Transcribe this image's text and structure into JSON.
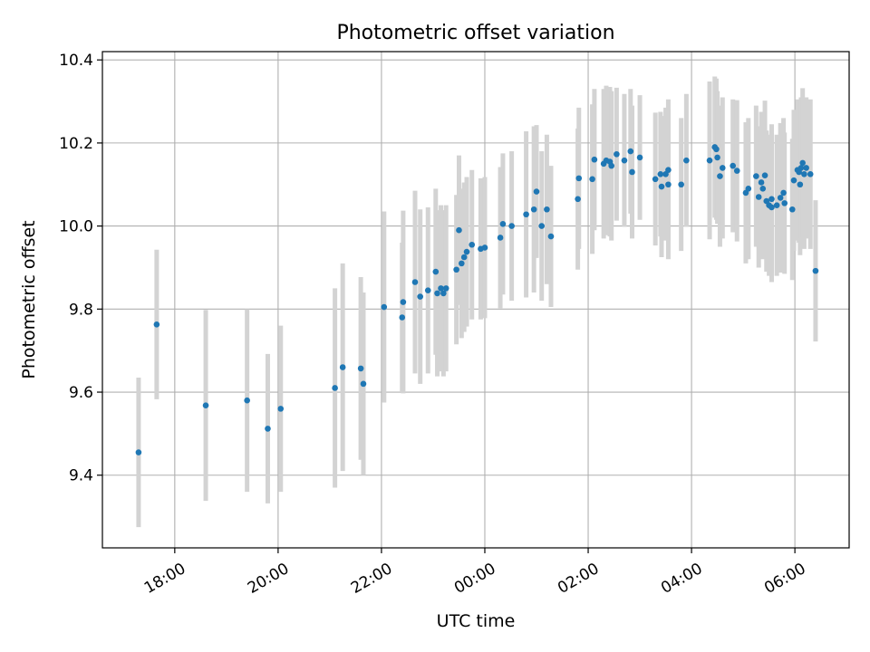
{
  "chart_data": {
    "type": "scatter",
    "title": "Photometric offset variation",
    "xlabel": "UTC time",
    "ylabel": "Photometric offset",
    "x_ticks": [
      "18:00",
      "20:00",
      "22:00",
      "00:00",
      "02:00",
      "04:00",
      "06:00"
    ],
    "y_ticks": [
      "9.4",
      "9.6",
      "9.8",
      "10.0",
      "10.2",
      "10.4"
    ],
    "grid": true,
    "x_unit": "hours since 00:00 UTC",
    "xlim": [
      -7.4,
      7.05
    ],
    "ylim": [
      9.225,
      10.42
    ],
    "colors": {
      "point": "#1f77b4",
      "errorbar": "#d3d3d3",
      "grid": "#b0b0b0"
    },
    "series": [
      {
        "points": [
          {
            "x": -6.7,
            "y": 9.455,
            "err": 0.18
          },
          {
            "x": -6.35,
            "y": 9.763,
            "err": 0.18
          },
          {
            "x": -5.4,
            "y": 9.568,
            "err": 0.23
          },
          {
            "x": -4.6,
            "y": 9.58,
            "err": 0.22
          },
          {
            "x": -4.2,
            "y": 9.512,
            "err": 0.18
          },
          {
            "x": -3.95,
            "y": 9.56,
            "err": 0.2
          },
          {
            "x": -2.9,
            "y": 9.61,
            "err": 0.24
          },
          {
            "x": -2.75,
            "y": 9.66,
            "err": 0.25
          },
          {
            "x": -2.4,
            "y": 9.657,
            "err": 0.22
          },
          {
            "x": -2.35,
            "y": 9.62,
            "err": 0.22
          },
          {
            "x": -1.95,
            "y": 9.805,
            "err": 0.23
          },
          {
            "x": -1.6,
            "y": 9.78,
            "err": 0.18
          },
          {
            "x": -1.58,
            "y": 9.817,
            "err": 0.22
          },
          {
            "x": -1.35,
            "y": 9.865,
            "err": 0.22
          },
          {
            "x": -1.25,
            "y": 9.83,
            "err": 0.21
          },
          {
            "x": -1.1,
            "y": 9.845,
            "err": 0.2
          },
          {
            "x": -0.95,
            "y": 9.89,
            "err": 0.2
          },
          {
            "x": -0.92,
            "y": 9.838,
            "err": 0.2
          },
          {
            "x": -0.85,
            "y": 9.85,
            "err": 0.2
          },
          {
            "x": -0.8,
            "y": 9.838,
            "err": 0.2
          },
          {
            "x": -0.75,
            "y": 9.85,
            "err": 0.2
          },
          {
            "x": -0.55,
            "y": 9.895,
            "err": 0.18
          },
          {
            "x": -0.5,
            "y": 9.99,
            "err": 0.18
          },
          {
            "x": -0.45,
            "y": 9.91,
            "err": 0.18
          },
          {
            "x": -0.4,
            "y": 9.925,
            "err": 0.18
          },
          {
            "x": -0.35,
            "y": 9.938,
            "err": 0.18
          },
          {
            "x": -0.25,
            "y": 9.955,
            "err": 0.18
          },
          {
            "x": -0.08,
            "y": 9.945,
            "err": 0.17
          },
          {
            "x": 0.0,
            "y": 9.948,
            "err": 0.17
          },
          {
            "x": 0.3,
            "y": 9.972,
            "err": 0.17
          },
          {
            "x": 0.35,
            "y": 10.005,
            "err": 0.17
          },
          {
            "x": 0.52,
            "y": 10.0,
            "err": 0.18
          },
          {
            "x": 0.8,
            "y": 10.028,
            "err": 0.2
          },
          {
            "x": 0.95,
            "y": 10.04,
            "err": 0.2
          },
          {
            "x": 1.0,
            "y": 10.083,
            "err": 0.16
          },
          {
            "x": 1.1,
            "y": 10.0,
            "err": 0.18
          },
          {
            "x": 1.2,
            "y": 10.04,
            "err": 0.18
          },
          {
            "x": 1.28,
            "y": 9.975,
            "err": 0.17
          },
          {
            "x": 1.8,
            "y": 10.065,
            "err": 0.17
          },
          {
            "x": 1.82,
            "y": 10.115,
            "err": 0.17
          },
          {
            "x": 2.08,
            "y": 10.113,
            "err": 0.18
          },
          {
            "x": 2.12,
            "y": 10.16,
            "err": 0.17
          },
          {
            "x": 2.3,
            "y": 10.15,
            "err": 0.18
          },
          {
            "x": 2.35,
            "y": 10.158,
            "err": 0.18
          },
          {
            "x": 2.42,
            "y": 10.155,
            "err": 0.18
          },
          {
            "x": 2.45,
            "y": 10.145,
            "err": 0.18
          },
          {
            "x": 2.55,
            "y": 10.173,
            "err": 0.16
          },
          {
            "x": 2.7,
            "y": 10.158,
            "err": 0.16
          },
          {
            "x": 2.82,
            "y": 10.18,
            "err": 0.15
          },
          {
            "x": 2.85,
            "y": 10.13,
            "err": 0.16
          },
          {
            "x": 3.0,
            "y": 10.165,
            "err": 0.15
          },
          {
            "x": 3.3,
            "y": 10.113,
            "err": 0.16
          },
          {
            "x": 3.4,
            "y": 10.125,
            "err": 0.15
          },
          {
            "x": 3.42,
            "y": 10.095,
            "err": 0.17
          },
          {
            "x": 3.5,
            "y": 10.125,
            "err": 0.16
          },
          {
            "x": 3.55,
            "y": 10.135,
            "err": 0.17
          },
          {
            "x": 3.55,
            "y": 10.1,
            "err": 0.18
          },
          {
            "x": 3.8,
            "y": 10.1,
            "err": 0.16
          },
          {
            "x": 3.9,
            "y": 10.158,
            "err": 0.16
          },
          {
            "x": 4.35,
            "y": 10.158,
            "err": 0.19
          },
          {
            "x": 4.45,
            "y": 10.19,
            "err": 0.17
          },
          {
            "x": 4.48,
            "y": 10.185,
            "err": 0.17
          },
          {
            "x": 4.5,
            "y": 10.165,
            "err": 0.16
          },
          {
            "x": 4.55,
            "y": 10.12,
            "err": 0.17
          },
          {
            "x": 4.6,
            "y": 10.14,
            "err": 0.17
          },
          {
            "x": 4.8,
            "y": 10.145,
            "err": 0.16
          },
          {
            "x": 4.88,
            "y": 10.133,
            "err": 0.17
          },
          {
            "x": 5.05,
            "y": 10.08,
            "err": 0.17
          },
          {
            "x": 5.1,
            "y": 10.09,
            "err": 0.17
          },
          {
            "x": 5.25,
            "y": 10.12,
            "err": 0.17
          },
          {
            "x": 5.3,
            "y": 10.07,
            "err": 0.17
          },
          {
            "x": 5.35,
            "y": 10.105,
            "err": 0.17
          },
          {
            "x": 5.38,
            "y": 10.09,
            "err": 0.17
          },
          {
            "x": 5.42,
            "y": 10.122,
            "err": 0.18
          },
          {
            "x": 5.45,
            "y": 10.06,
            "err": 0.17
          },
          {
            "x": 5.5,
            "y": 10.05,
            "err": 0.17
          },
          {
            "x": 5.55,
            "y": 10.045,
            "err": 0.18
          },
          {
            "x": 5.55,
            "y": 10.065,
            "err": 0.18
          },
          {
            "x": 5.65,
            "y": 10.05,
            "err": 0.17
          },
          {
            "x": 5.72,
            "y": 10.068,
            "err": 0.18
          },
          {
            "x": 5.78,
            "y": 10.08,
            "err": 0.18
          },
          {
            "x": 5.8,
            "y": 10.055,
            "err": 0.17
          },
          {
            "x": 5.95,
            "y": 10.04,
            "err": 0.17
          },
          {
            "x": 5.98,
            "y": 10.11,
            "err": 0.17
          },
          {
            "x": 6.05,
            "y": 10.135,
            "err": 0.17
          },
          {
            "x": 6.08,
            "y": 10.13,
            "err": 0.17
          },
          {
            "x": 6.1,
            "y": 10.1,
            "err": 0.17
          },
          {
            "x": 6.12,
            "y": 10.14,
            "err": 0.17
          },
          {
            "x": 6.15,
            "y": 10.152,
            "err": 0.18
          },
          {
            "x": 6.18,
            "y": 10.125,
            "err": 0.18
          },
          {
            "x": 6.22,
            "y": 10.14,
            "err": 0.17
          },
          {
            "x": 6.3,
            "y": 10.125,
            "err": 0.18
          },
          {
            "x": 6.4,
            "y": 9.892,
            "err": 0.17
          }
        ]
      }
    ]
  }
}
